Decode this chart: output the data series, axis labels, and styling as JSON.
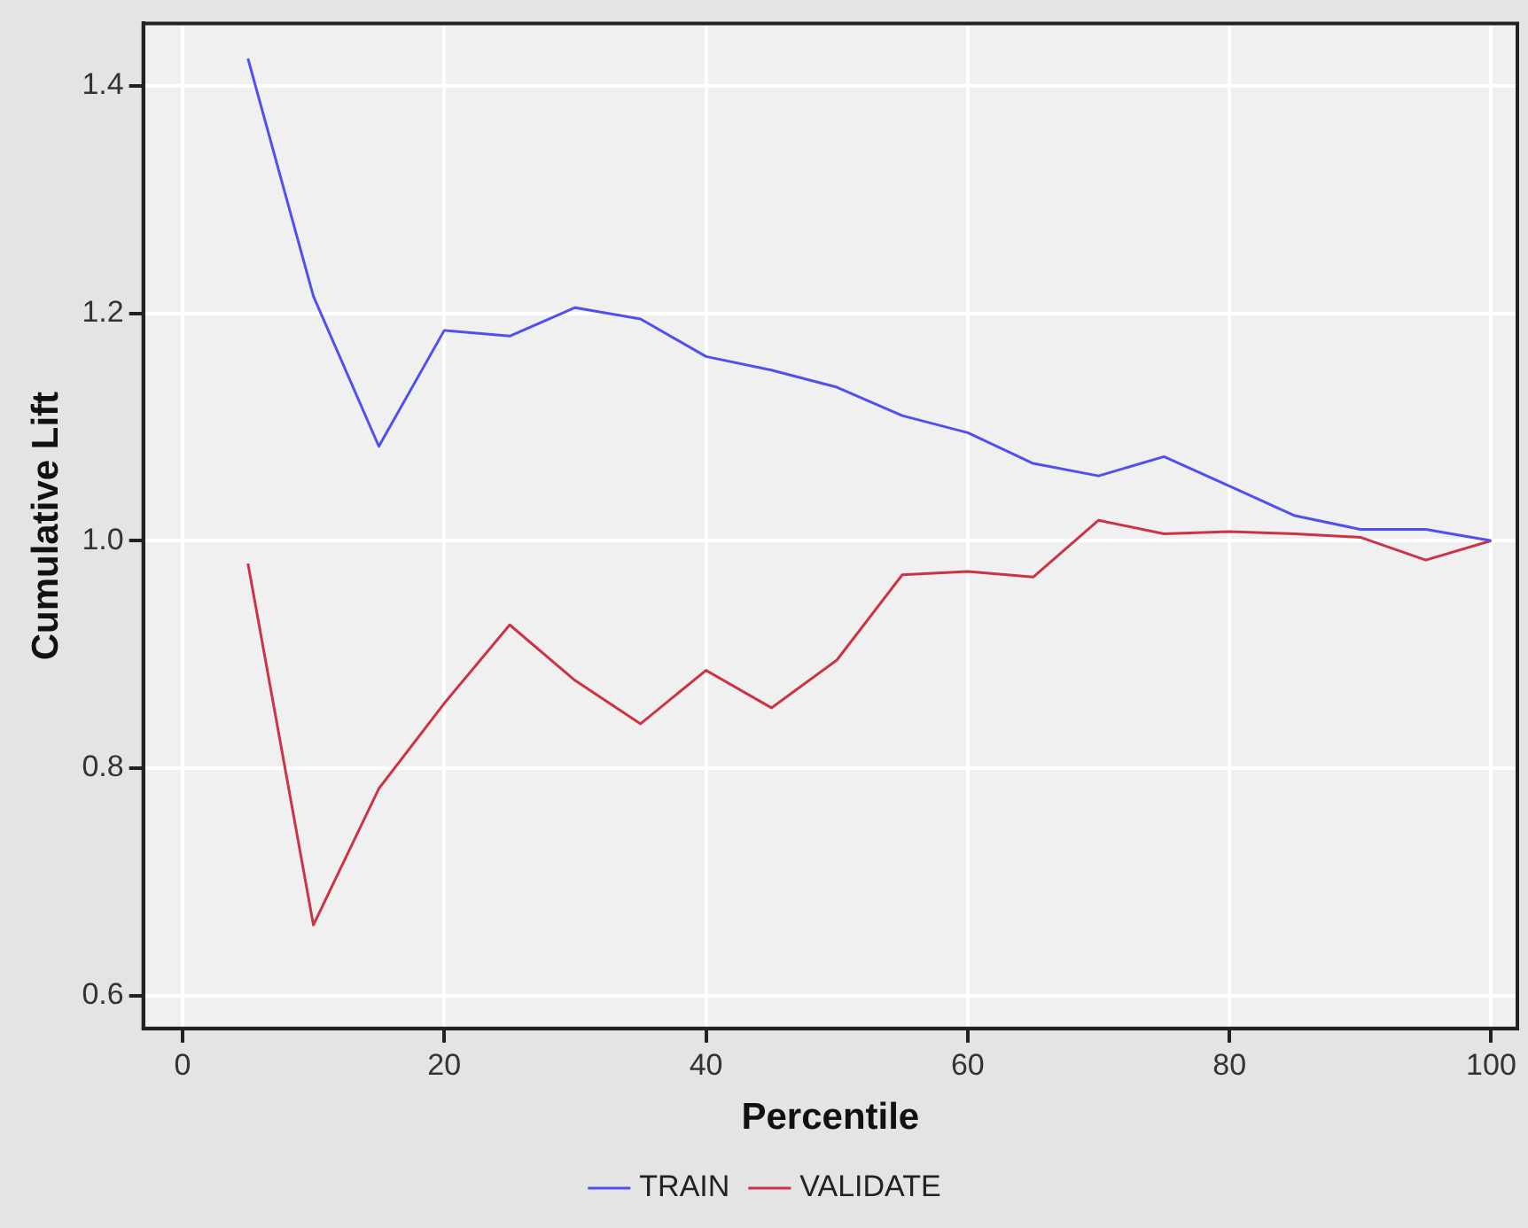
{
  "chart_data": {
    "type": "line",
    "xlabel": "Percentile",
    "ylabel": "Cumulative Lift",
    "x": [
      5,
      10,
      15,
      20,
      25,
      30,
      35,
      40,
      45,
      50,
      55,
      60,
      65,
      70,
      75,
      80,
      85,
      90,
      95,
      100
    ],
    "series": [
      {
        "name": "TRAIN",
        "color": "#5050f0",
        "values": [
          1.424,
          1.215,
          1.083,
          1.185,
          1.18,
          1.205,
          1.195,
          1.162,
          1.15,
          1.135,
          1.11,
          1.095,
          1.068,
          1.057,
          1.074,
          1.048,
          1.022,
          1.01,
          1.01,
          1.0
        ]
      },
      {
        "name": "VALIDATE",
        "color": "#cc3344",
        "values": [
          0.98,
          0.662,
          0.782,
          0.857,
          0.926,
          0.877,
          0.839,
          0.886,
          0.853,
          0.895,
          0.97,
          0.973,
          0.968,
          1.018,
          1.006,
          1.008,
          1.006,
          1.003,
          0.983,
          1.0
        ]
      }
    ],
    "xlim": [
      -3,
      102
    ],
    "xticks": [
      0,
      20,
      40,
      60,
      80,
      100
    ],
    "ylim": [
      0.571,
      1.455
    ],
    "yticks": [
      0.6,
      0.8,
      {
        "value": 1,
        "label": "1.0"
      },
      1.2,
      1.4
    ],
    "grid": true,
    "legend": "bottom",
    "marker": "none",
    "line_style": "solid"
  }
}
